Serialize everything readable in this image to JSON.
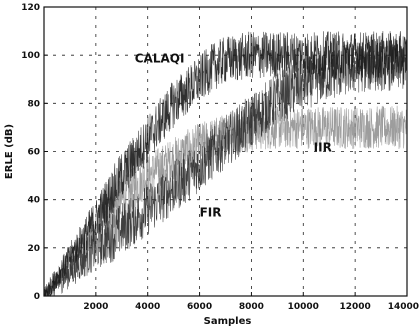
{
  "chart_data": {
    "type": "line",
    "title": "",
    "xlabel": "Samples",
    "ylabel": "ERLE (dB)",
    "xlim": [
      0,
      14000
    ],
    "ylim": [
      0,
      120
    ],
    "x_ticks": [
      2000,
      4000,
      6000,
      8000,
      10000,
      12000,
      14000
    ],
    "x_tick_labels": [
      "2000",
      "4000",
      "6000",
      "8000",
      "10000",
      "12000",
      "14000"
    ],
    "y_ticks": [
      0,
      20,
      40,
      60,
      80,
      100,
      120
    ],
    "y_tick_labels": [
      "0",
      "20",
      "40",
      "60",
      "80",
      "100",
      "120"
    ],
    "grid": true,
    "series": [
      {
        "name": "CALAQI",
        "x": [
          0,
          1000,
          2000,
          3000,
          4000,
          5000,
          6000,
          6500,
          7000,
          8000,
          9000,
          10000,
          11000,
          12000,
          13000,
          14000
        ],
        "values": [
          0,
          16,
          32,
          50,
          65,
          80,
          90,
          95,
          98,
          100,
          100,
          100,
          100,
          100,
          100,
          100
        ],
        "color": "#1a1a1a"
      },
      {
        "name": "IIR",
        "x": [
          0,
          1000,
          2000,
          3000,
          4000,
          5000,
          6000,
          7000,
          8000,
          9000,
          10000,
          11000,
          12000,
          13000,
          14000
        ],
        "values": [
          0,
          15,
          28,
          40,
          50,
          57,
          63,
          67,
          69,
          70,
          70,
          70,
          70,
          70,
          70
        ],
        "color": "#8c8c8c"
      },
      {
        "name": "FIR",
        "x": [
          0,
          1000,
          2000,
          3000,
          4000,
          5000,
          6000,
          7000,
          8000,
          9000,
          10000,
          11000,
          12000,
          13000,
          14000
        ],
        "values": [
          0,
          10,
          20,
          28,
          36,
          45,
          54,
          64,
          73,
          82,
          88,
          92,
          95,
          96,
          96
        ],
        "color": "#2b2b2b"
      }
    ],
    "annotations": [
      {
        "text": "CALAQI",
        "x": 3500,
        "y": 97
      },
      {
        "text": "IIR",
        "x": 10400,
        "y": 60
      },
      {
        "text": "FIR",
        "x": 6000,
        "y": 33
      }
    ]
  }
}
